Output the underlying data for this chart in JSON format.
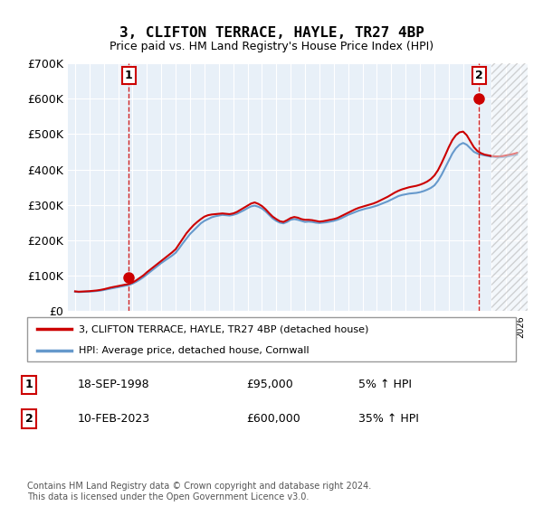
{
  "title": "3, CLIFTON TERRACE, HAYLE, TR27 4BP",
  "subtitle": "Price paid vs. HM Land Registry's House Price Index (HPI)",
  "footer": "Contains HM Land Registry data © Crown copyright and database right 2024.\nThis data is licensed under the Open Government Licence v3.0.",
  "legend_entry1": "3, CLIFTON TERRACE, HAYLE, TR27 4BP (detached house)",
  "legend_entry2": "HPI: Average price, detached house, Cornwall",
  "sale1_label": "1",
  "sale1_date": "18-SEP-1998",
  "sale1_price": "£95,000",
  "sale1_hpi": "5% ↑ HPI",
  "sale2_label": "2",
  "sale2_date": "10-FEB-2023",
  "sale2_price": "£600,000",
  "sale2_hpi": "35% ↑ HPI",
  "sale1_year": 1998.72,
  "sale1_value": 95000,
  "sale2_year": 2023.11,
  "sale2_value": 600000,
  "xlim": [
    1994.5,
    2026.5
  ],
  "ylim": [
    0,
    700000
  ],
  "yticks": [
    0,
    100000,
    200000,
    300000,
    400000,
    500000,
    600000,
    700000
  ],
  "ytick_labels": [
    "£0",
    "£100K",
    "£200K",
    "£300K",
    "£400K",
    "£500K",
    "£600K",
    "£700K"
  ],
  "hatch_start_year": 2024.0,
  "bg_color": "#e8f0f8",
  "line_color_red": "#cc0000",
  "line_color_blue": "#6699cc",
  "years": [
    1995.0,
    1995.25,
    1995.5,
    1995.75,
    1996.0,
    1996.25,
    1996.5,
    1996.75,
    1997.0,
    1997.25,
    1997.5,
    1997.75,
    1998.0,
    1998.25,
    1998.5,
    1998.75,
    1999.0,
    1999.25,
    1999.5,
    1999.75,
    2000.0,
    2000.25,
    2000.5,
    2000.75,
    2001.0,
    2001.25,
    2001.5,
    2001.75,
    2002.0,
    2002.25,
    2002.5,
    2002.75,
    2003.0,
    2003.25,
    2003.5,
    2003.75,
    2004.0,
    2004.25,
    2004.5,
    2004.75,
    2005.0,
    2005.25,
    2005.5,
    2005.75,
    2006.0,
    2006.25,
    2006.5,
    2006.75,
    2007.0,
    2007.25,
    2007.5,
    2007.75,
    2008.0,
    2008.25,
    2008.5,
    2008.75,
    2009.0,
    2009.25,
    2009.5,
    2009.75,
    2010.0,
    2010.25,
    2010.5,
    2010.75,
    2011.0,
    2011.25,
    2011.5,
    2011.75,
    2012.0,
    2012.25,
    2012.5,
    2012.75,
    2013.0,
    2013.25,
    2013.5,
    2013.75,
    2014.0,
    2014.25,
    2014.5,
    2014.75,
    2015.0,
    2015.25,
    2015.5,
    2015.75,
    2016.0,
    2016.25,
    2016.5,
    2016.75,
    2017.0,
    2017.25,
    2017.5,
    2017.75,
    2018.0,
    2018.25,
    2018.5,
    2018.75,
    2019.0,
    2019.25,
    2019.5,
    2019.75,
    2020.0,
    2020.25,
    2020.5,
    2020.75,
    2021.0,
    2021.25,
    2021.5,
    2021.75,
    2022.0,
    2022.25,
    2022.5,
    2022.75,
    2023.0,
    2023.25,
    2023.5,
    2023.75,
    2024.0,
    2024.25,
    2024.5,
    2024.75,
    2025.0,
    2025.25,
    2025.5,
    2025.75
  ],
  "hpi_values": [
    55000,
    54000,
    54500,
    55000,
    55500,
    56000,
    57000,
    58000,
    60000,
    62000,
    64000,
    66000,
    68000,
    70000,
    72000,
    74000,
    78000,
    83000,
    89000,
    96000,
    104000,
    112000,
    120000,
    128000,
    136000,
    143000,
    150000,
    157000,
    165000,
    178000,
    192000,
    205000,
    218000,
    228000,
    238000,
    248000,
    255000,
    260000,
    265000,
    268000,
    270000,
    272000,
    271000,
    270000,
    272000,
    275000,
    280000,
    285000,
    291000,
    296000,
    298000,
    295000,
    290000,
    282000,
    272000,
    262000,
    255000,
    250000,
    248000,
    252000,
    258000,
    260000,
    258000,
    255000,
    252000,
    253000,
    252000,
    250000,
    249000,
    250000,
    251000,
    253000,
    255000,
    258000,
    262000,
    267000,
    272000,
    276000,
    280000,
    284000,
    287000,
    290000,
    292000,
    295000,
    298000,
    302000,
    306000,
    310000,
    315000,
    320000,
    325000,
    328000,
    330000,
    332000,
    333000,
    334000,
    336000,
    339000,
    343000,
    348000,
    355000,
    368000,
    385000,
    405000,
    425000,
    445000,
    460000,
    470000,
    475000,
    470000,
    460000,
    450000,
    445000,
    442000,
    440000,
    438000,
    436000,
    435000,
    434000,
    435000,
    436000,
    438000,
    440000,
    442000
  ],
  "red_values": [
    56000,
    55000,
    55500,
    56000,
    56500,
    57500,
    58500,
    60000,
    62000,
    64500,
    67000,
    69000,
    71000,
    73000,
    75000,
    77000,
    81000,
    87000,
    94000,
    101000,
    110000,
    118000,
    126000,
    134000,
    142000,
    150000,
    158000,
    166000,
    175000,
    190000,
    205000,
    220000,
    232000,
    243000,
    252000,
    260000,
    267000,
    271000,
    273000,
    274000,
    275000,
    276000,
    275000,
    274000,
    276000,
    280000,
    286000,
    292000,
    298000,
    304000,
    307000,
    303000,
    297000,
    288000,
    277000,
    267000,
    260000,
    254000,
    252000,
    257000,
    263000,
    266000,
    264000,
    260000,
    258000,
    258000,
    257000,
    255000,
    253000,
    254000,
    256000,
    258000,
    260000,
    263000,
    268000,
    273000,
    278000,
    283000,
    288000,
    292000,
    295000,
    298000,
    301000,
    304000,
    308000,
    313000,
    318000,
    323000,
    329000,
    335000,
    340000,
    344000,
    347000,
    350000,
    352000,
    354000,
    357000,
    361000,
    366000,
    373000,
    383000,
    398000,
    418000,
    440000,
    463000,
    483000,
    497000,
    505000,
    507000,
    497000,
    480000,
    463000,
    452000,
    446000,
    442000,
    440000,
    438000,
    437000,
    437000,
    438000,
    440000,
    442000,
    444000,
    447000
  ]
}
